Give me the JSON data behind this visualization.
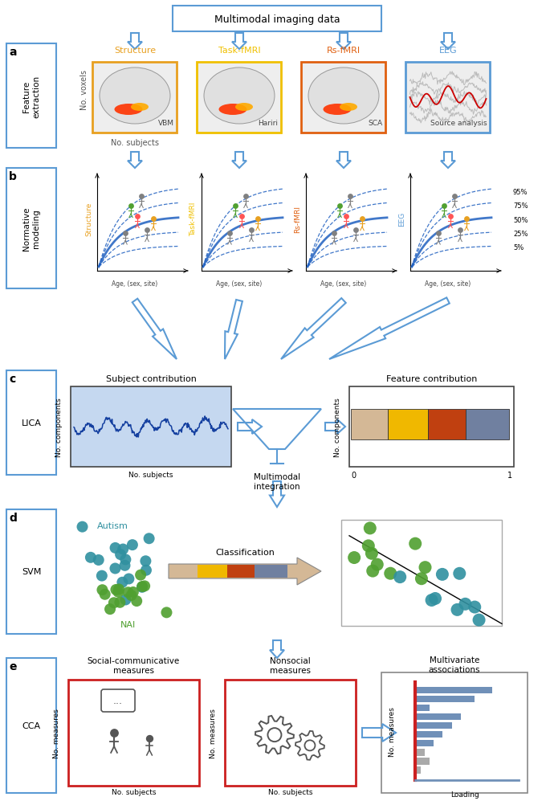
{
  "title": "Multimodal imaging data",
  "bg_color": "#ffffff",
  "panel_border_color": "#5b9bd5",
  "structure_color": "#E8A020",
  "task_fmri_color": "#F0C000",
  "rs_fmri_color": "#E06010",
  "eeg_color": "#5b9bd5",
  "normative_curve_color": "#2060C0",
  "lica_fill_color": "#C5D8F0",
  "arrow_color": "#5b9bd5",
  "bar_colors": [
    "#D4B896",
    "#F0B800",
    "#C04010",
    "#7080A0"
  ],
  "svm_autism_color": "#3090A0",
  "svm_nai_color": "#50A030",
  "cca_red_color": "#CC2020",
  "cca_blue_color": "#7090B8",
  "section_titles_a": [
    "Structure",
    "Task-fMRI",
    "Rs-fMRI",
    "EEG"
  ],
  "section_subtitles_a": [
    "VBM",
    "Hariri",
    "SCA",
    "Source analysis"
  ],
  "normative_labels": [
    "Structure",
    "Task-fMRI",
    "Rs-fMRI",
    "EEG"
  ],
  "percentiles": [
    "95%",
    "75%",
    "50%",
    "25%",
    "5%"
  ],
  "svm_autism_label": "Autism",
  "svm_nai_label": "NAI",
  "svm_class_label": "Classification",
  "cca_social_label": "Social-communicative\nmeasures",
  "cca_nonsocial_label": "Nonsocial\nmeasures",
  "cca_multivar_label": "Multivariate\nassociations",
  "cca_xlabel": "Loading",
  "cca_ylabel": "No. measures"
}
